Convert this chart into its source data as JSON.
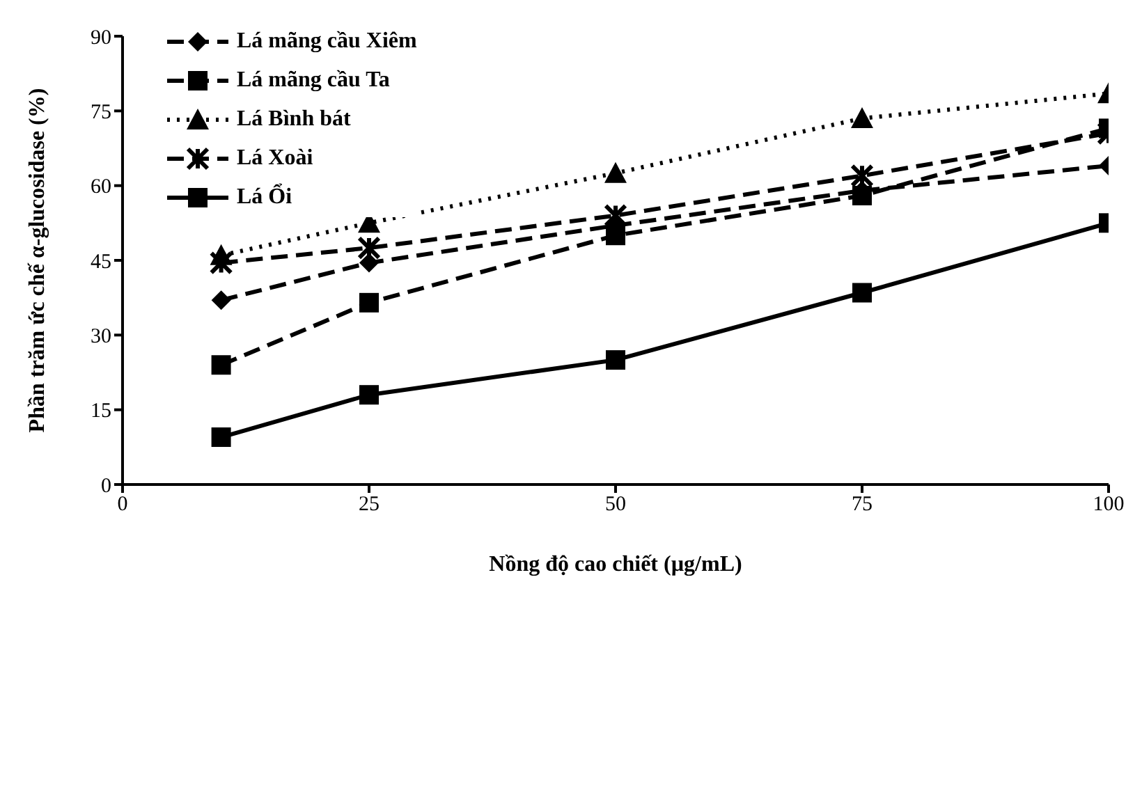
{
  "chart_data": {
    "type": "line",
    "xlabel": "Nồng độ cao chiết (µg/mL)",
    "ylabel": "Phần trăm ức chế α-glucosidase (%)",
    "x": [
      10,
      25,
      50,
      75,
      100
    ],
    "series": [
      {
        "name": "Lá mãng cầu Xiêm",
        "color": "#000000",
        "marker": "diamond",
        "line_style": "dashed",
        "values": [
          37,
          44.5,
          52,
          59,
          64
        ]
      },
      {
        "name": "Lá mãng cầu Ta",
        "color": "#000000",
        "marker": "square",
        "line_style": "dashed",
        "values": [
          24,
          36.5,
          50,
          58,
          71.5
        ]
      },
      {
        "name": "Lá Bình bát",
        "color": "#000000",
        "marker": "triangle",
        "line_style": "dotted",
        "values": [
          46,
          52.5,
          62.5,
          73.5,
          78.5
        ]
      },
      {
        "name": "Lá Xoài",
        "color": "#000000",
        "marker": "cross",
        "line_style": "dashed",
        "values": [
          44.5,
          47.5,
          54,
          62,
          70.5
        ]
      },
      {
        "name": "Lá Ổi",
        "color": "#000000",
        "marker": "square",
        "line_style": "solid",
        "values": [
          9.5,
          18,
          25,
          38.5,
          52.5
        ]
      }
    ],
    "xlim": [
      0,
      100
    ],
    "xticks": [
      0,
      25,
      50,
      75,
      100
    ],
    "ylim": [
      0,
      90
    ],
    "yticks": [
      0,
      15,
      30,
      45,
      60,
      75,
      90
    ],
    "grid": false,
    "legend": "top left"
  }
}
